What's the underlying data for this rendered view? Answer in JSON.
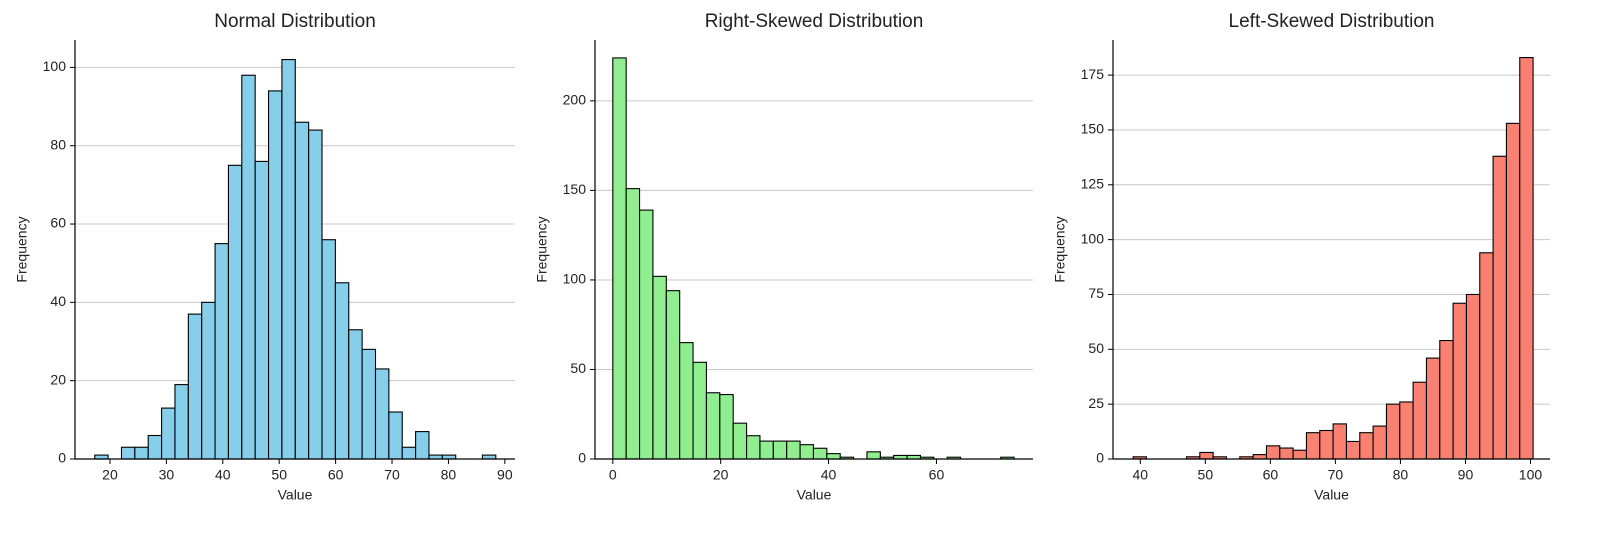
{
  "chart_data": [
    {
      "type": "histogram",
      "title": "Normal Distribution",
      "xlabel": "Value",
      "ylabel": "Frequency",
      "color": "#87ceeb",
      "grid": "y",
      "bins": [
        17.3,
        19.67,
        22.04,
        24.41,
        26.78,
        29.15,
        31.52,
        33.89,
        36.26,
        38.63,
        41.0,
        43.37,
        45.74,
        48.11,
        50.48,
        52.85,
        55.22,
        57.59,
        59.96,
        62.33,
        64.7,
        67.07,
        69.44,
        71.81,
        74.18,
        76.55,
        78.92,
        81.29,
        83.66,
        86.03,
        88.4
      ],
      "values": [
        1,
        0,
        3,
        3,
        6,
        13,
        19,
        37,
        40,
        55,
        75,
        98,
        76,
        94,
        102,
        86,
        84,
        56,
        45,
        33,
        28,
        23,
        12,
        3,
        7,
        1,
        1,
        0,
        0,
        1
      ],
      "xlim": [
        13.8,
        91.8
      ],
      "xticks": [
        20,
        30,
        40,
        50,
        60,
        70,
        80,
        90
      ],
      "ylim": [
        0,
        107
      ],
      "yticks": [
        0,
        20,
        40,
        60,
        80,
        100
      ]
    },
    {
      "type": "histogram",
      "title": "Right-Skewed Distribution",
      "xlabel": "Value",
      "ylabel": "Frequency",
      "color": "#90ee90",
      "grid": "y",
      "bins": [
        0,
        2.48,
        4.96,
        7.44,
        9.92,
        12.4,
        14.88,
        17.36,
        19.84,
        22.32,
        24.8,
        27.28,
        29.76,
        32.24,
        34.72,
        37.2,
        39.68,
        42.16,
        44.64,
        47.12,
        49.6,
        52.08,
        54.56,
        57.04,
        59.52,
        62.0,
        64.48,
        66.96,
        69.44,
        71.92,
        74.4
      ],
      "values": [
        224,
        151,
        139,
        102,
        94,
        65,
        54,
        37,
        36,
        20,
        13,
        10,
        10,
        10,
        8,
        6,
        3,
        1,
        0,
        4,
        1,
        2,
        2,
        1,
        0,
        1,
        0,
        0,
        0,
        1
      ],
      "xlim": [
        -3.3,
        77.9
      ],
      "xticks": [
        0,
        20,
        40,
        60
      ],
      "ylim": [
        0,
        234
      ],
      "yticks": [
        0,
        50,
        100,
        150,
        200
      ]
    },
    {
      "type": "histogram",
      "title": "Left-Skewed Distribution",
      "xlabel": "Value",
      "ylabel": "Frequency",
      "color": "#fa8072",
      "grid": "y",
      "bins": [
        38.9,
        40.95,
        43.0,
        45.05,
        47.1,
        49.15,
        51.2,
        53.25,
        55.3,
        57.35,
        59.4,
        61.45,
        63.5,
        65.55,
        67.6,
        69.65,
        71.7,
        73.75,
        75.8,
        77.85,
        79.9,
        81.95,
        84.0,
        86.05,
        88.1,
        90.15,
        92.2,
        94.25,
        96.3,
        98.35,
        100.4
      ],
      "values": [
        1,
        0,
        0,
        0,
        1,
        3,
        1,
        0,
        1,
        2,
        6,
        5,
        4,
        12,
        13,
        16,
        8,
        12,
        15,
        25,
        26,
        35,
        46,
        54,
        71,
        75,
        94,
        138,
        153,
        183
      ],
      "xlim": [
        35.8,
        103
      ],
      "xticks": [
        40,
        50,
        60,
        70,
        80,
        90,
        100
      ],
      "ylim": [
        0,
        191
      ],
      "yticks": [
        0,
        25,
        50,
        75,
        100,
        125,
        150,
        175
      ]
    }
  ]
}
